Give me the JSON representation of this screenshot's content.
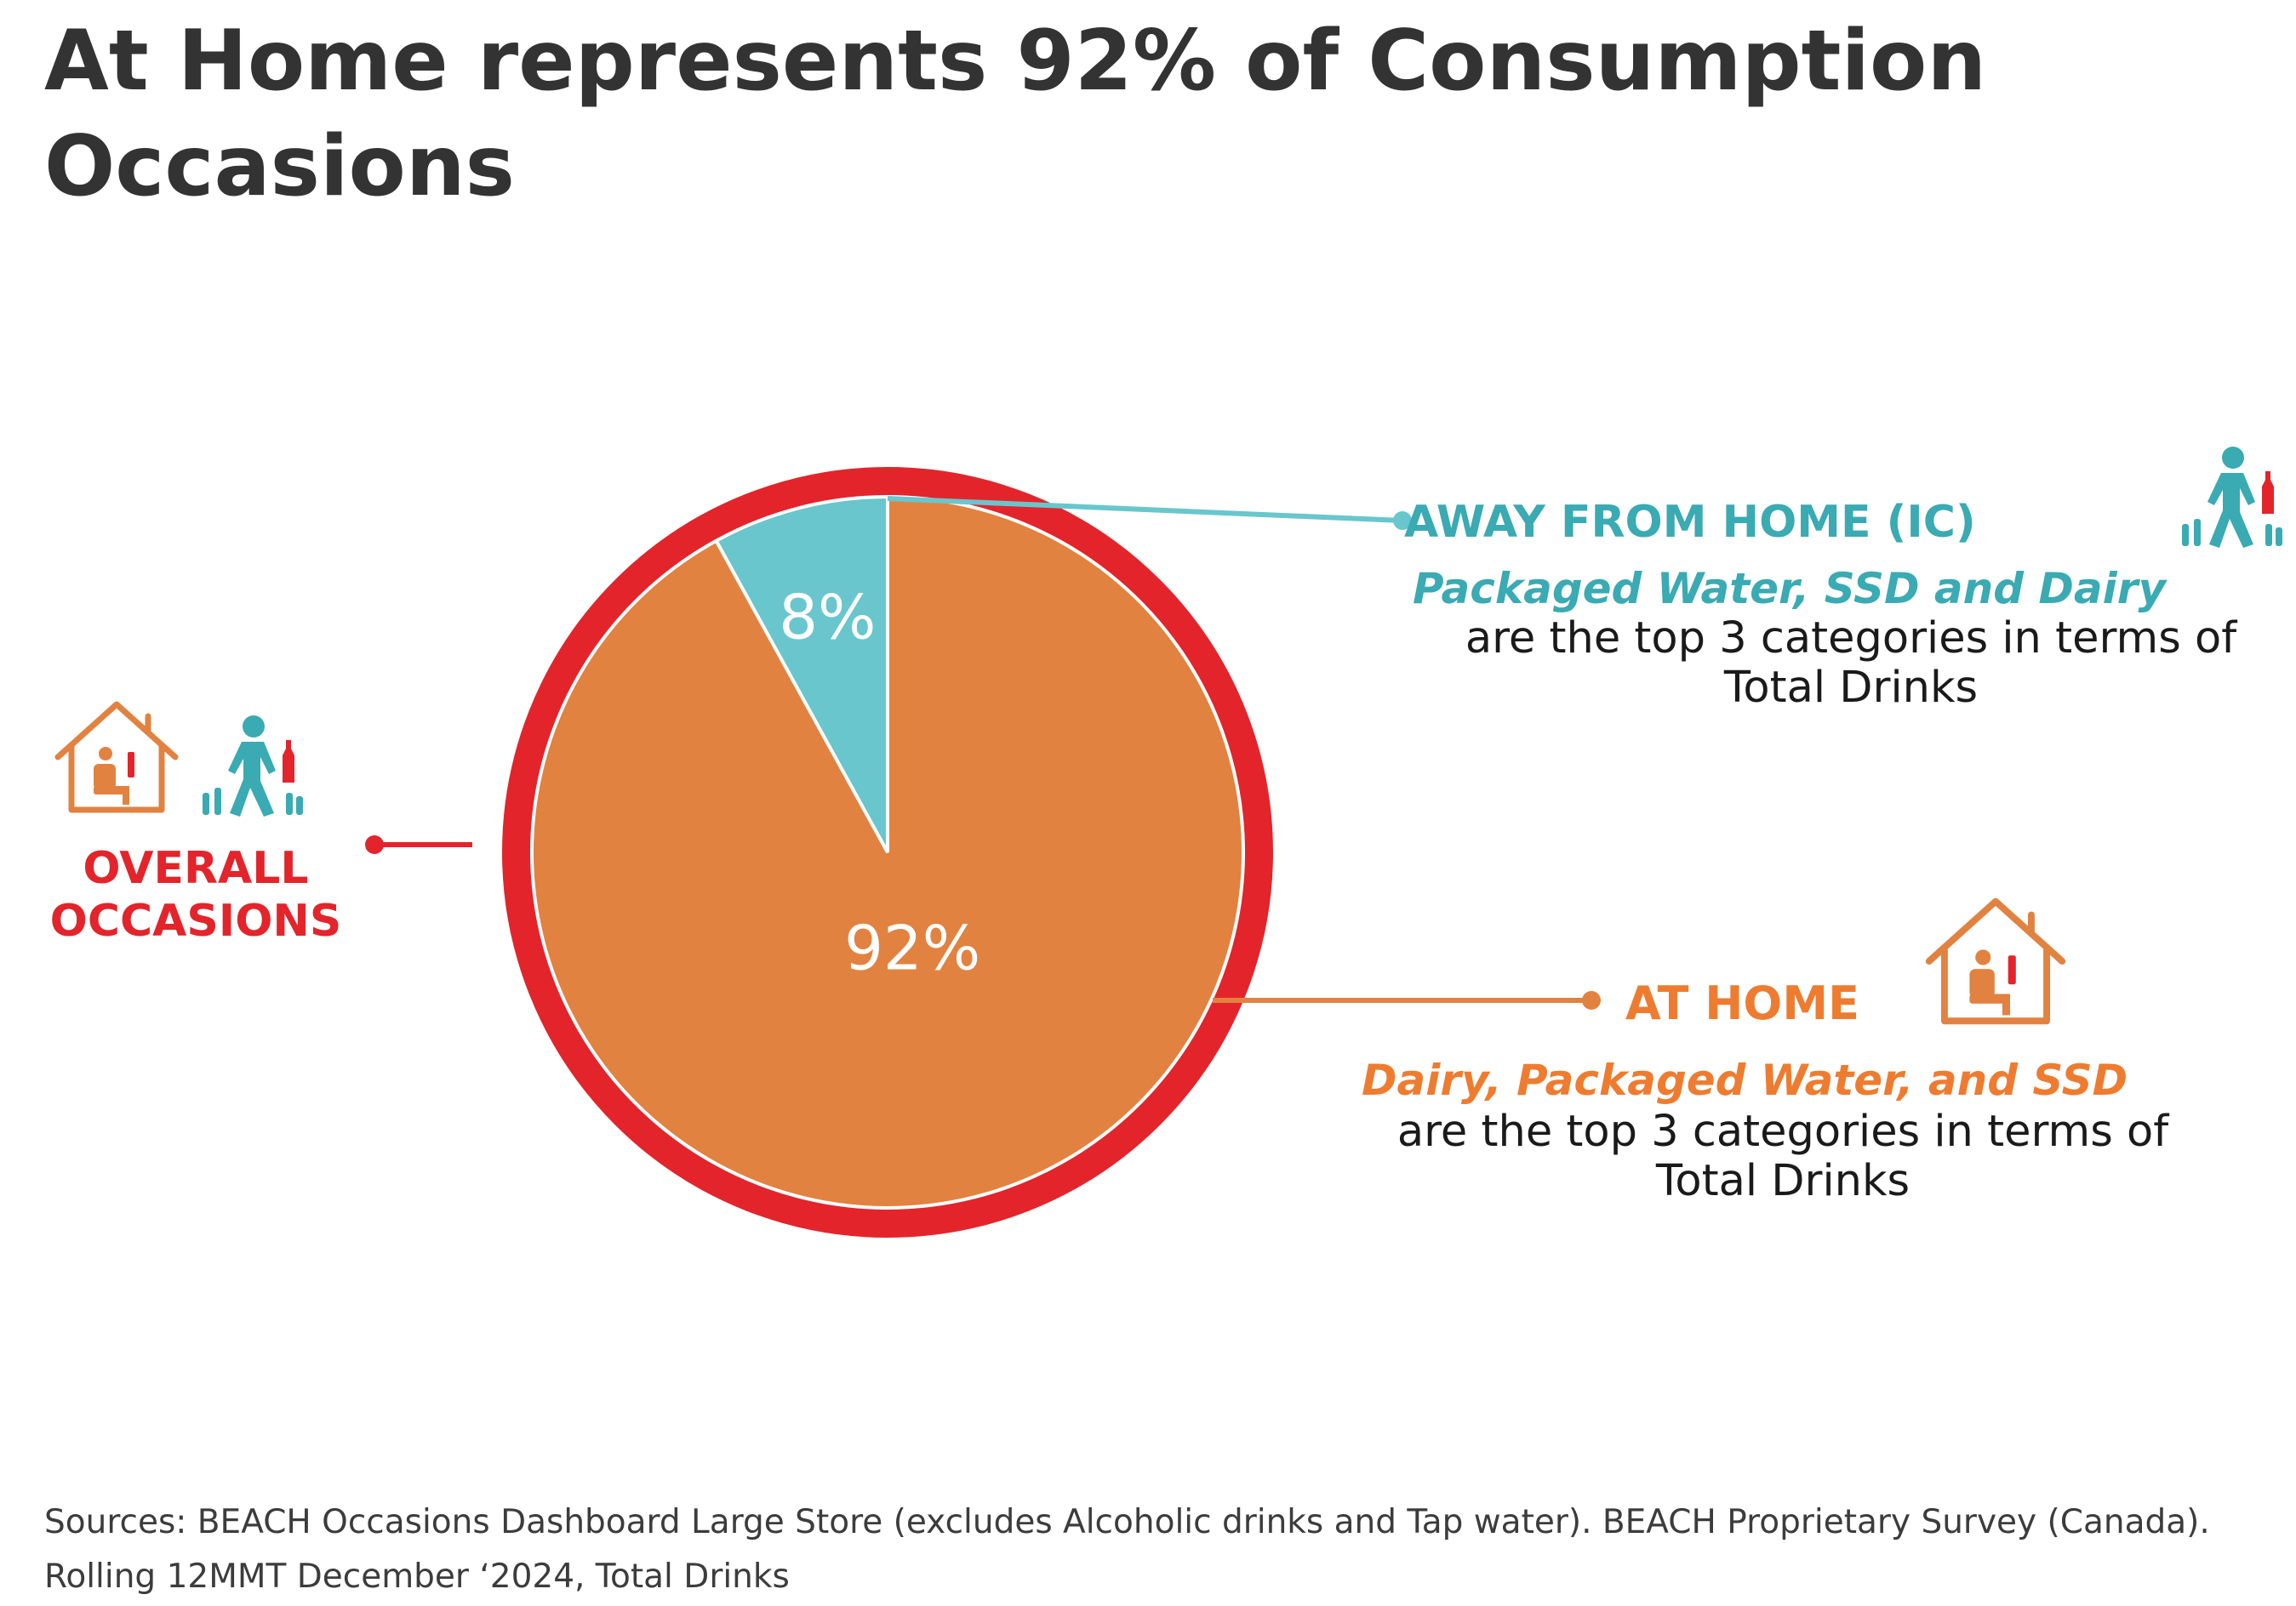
{
  "title": "At Home represents 92% of Consumption Occasions",
  "colors": {
    "ring": "#e3242b",
    "at_home": "#e28240",
    "away": "#69c6cd",
    "away_text": "#3aaab3",
    "home_text": "#ee7c30",
    "overall_text": "#e3242b",
    "body_text": "#1a1a1a"
  },
  "chart_data": {
    "type": "pie",
    "slices": [
      {
        "label": "AT HOME",
        "value": 92,
        "display": "92%"
      },
      {
        "label": "AWAY FROM HOME (IC)",
        "value": 8,
        "display": "8%"
      }
    ],
    "outer_ring_label": "OVERALL OCCASIONS"
  },
  "away": {
    "heading": "AWAY FROM HOME (IC)",
    "categories": "Packaged Water, SSD and Dairy",
    "description": "are the top 3 categories in terms of Total Drinks"
  },
  "home": {
    "heading": "AT HOME",
    "categories": "Dairy, Packaged Water, and SSD",
    "description": "are the top 3 categories in terms of Total Drinks"
  },
  "overall": {
    "label": "OVERALL\nOCCASIONS"
  },
  "icons": {
    "home": "house-person-drink-icon",
    "away": "walking-person-drink-icon"
  },
  "sources": "Sources: BEACH Occasions Dashboard Large Store (excludes Alcoholic drinks and Tap water). BEACH Proprietary Survey (Canada). Rolling 12MMT December ‘2024, Total Drinks"
}
